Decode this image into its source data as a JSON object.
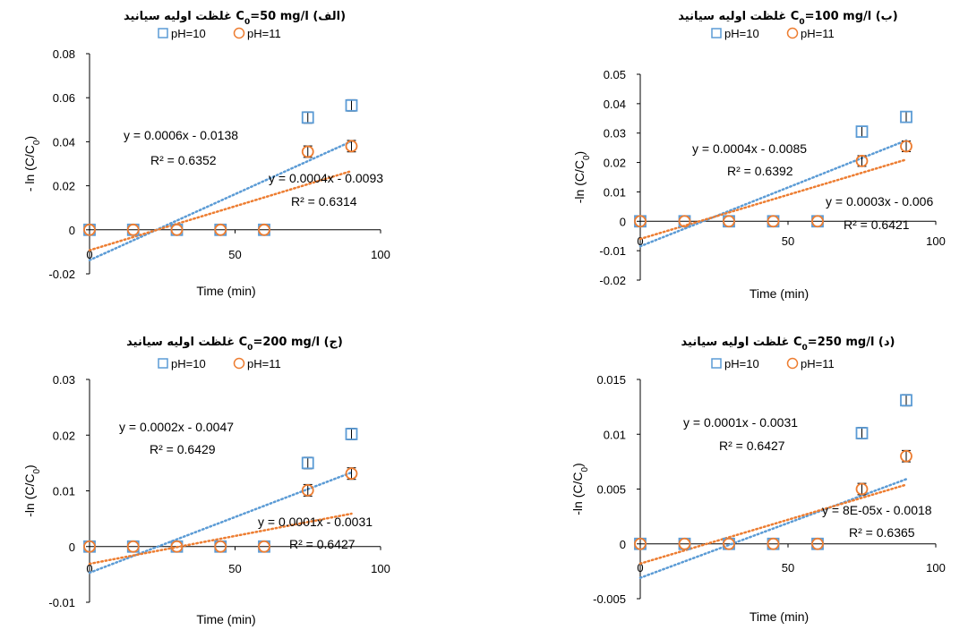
{
  "colors": {
    "blue": "#5B9BD5",
    "orange": "#ED7D31",
    "axis": "#000000"
  },
  "chart_data": [
    {
      "type": "scatter",
      "title": "غلظت اولیه سیانید C0=50 mg/l (الف)",
      "xlabel": "Time (min)",
      "ylabel": "- ln (C/C0)",
      "xlim": [
        0,
        100
      ],
      "ylim": [
        -0.02,
        0.08
      ],
      "xticks": [
        "0",
        "50",
        "100"
      ],
      "yticks": [
        "-0.02",
        "0",
        "0.02",
        "0.04",
        "0.06",
        "0.08"
      ],
      "legend": "top",
      "x": [
        0,
        15,
        30,
        45,
        60,
        75,
        90
      ],
      "series": [
        {
          "name": "pH=10",
          "marker": "square",
          "values": [
            0,
            0,
            0,
            0,
            0,
            0.051,
            0.0565
          ],
          "trendline": {
            "equation": "y = 0.0006x - 0.0138",
            "r2": "R² = 0.6352",
            "slope": 0.0006,
            "intercept": -0.0138
          }
        },
        {
          "name": "pH=11",
          "marker": "circle",
          "values": [
            0,
            0,
            0,
            0,
            0,
            0.0355,
            0.038
          ],
          "trendline": {
            "equation": "y = 0.0004x - 0.0093",
            "r2": "R² = 0.6314",
            "slope": 0.0004,
            "intercept": -0.0093
          }
        }
      ]
    },
    {
      "type": "scatter",
      "title": "غلظت اولیه سیانید C0=100 mg/l (ب)",
      "xlabel": "Time (min)",
      "ylabel": "-ln (C/C0)",
      "xlim": [
        0,
        100
      ],
      "ylim": [
        -0.02,
        0.05
      ],
      "xticks": [
        "0",
        "50",
        "100"
      ],
      "yticks": [
        "-0.02",
        "-0.01",
        "0",
        "0.01",
        "0.02",
        "0.03",
        "0.04",
        "0.05"
      ],
      "legend": "top",
      "x": [
        0,
        15,
        30,
        45,
        60,
        75,
        90
      ],
      "series": [
        {
          "name": "pH=10",
          "marker": "square",
          "values": [
            0,
            0,
            0,
            0,
            0,
            0.0305,
            0.0355
          ],
          "trendline": {
            "equation": "y = 0.0004x - 0.0085",
            "r2": "R² = 0.6392",
            "slope": 0.0004,
            "intercept": -0.0085
          }
        },
        {
          "name": "pH=11",
          "marker": "circle",
          "values": [
            0,
            0,
            0,
            0,
            0,
            0.0205,
            0.0255
          ],
          "trendline": {
            "equation": "y = 0.0003x - 0.006",
            "r2": "R² = 0.6421",
            "slope": 0.0003,
            "intercept": -0.006
          }
        }
      ]
    },
    {
      "type": "scatter",
      "title": "غلظت اولیه سیانید C0=200 mg/l (ج)",
      "xlabel": "Time (min)",
      "ylabel": "-ln (C/C0)",
      "xlim": [
        0,
        100
      ],
      "ylim": [
        -0.01,
        0.03
      ],
      "xticks": [
        "0",
        "50",
        "100"
      ],
      "yticks": [
        "-0.01",
        "0",
        "0.01",
        "0.02",
        "0.03"
      ],
      "legend": "top",
      "x": [
        0,
        15,
        30,
        45,
        60,
        75,
        90
      ],
      "series": [
        {
          "name": "pH=10",
          "marker": "square",
          "values": [
            0,
            0,
            0,
            0,
            0,
            0.015,
            0.0202
          ],
          "trendline": {
            "equation": "y = 0.0002x - 0.0047",
            "r2": "R² = 0.6429",
            "slope": 0.0002,
            "intercept": -0.0047
          }
        },
        {
          "name": "pH=11",
          "marker": "circle",
          "values": [
            0,
            0,
            0,
            0,
            0,
            0.0101,
            0.0131
          ],
          "trendline": {
            "equation": "y = 0.0001x - 0.0031",
            "r2": "R² = 0.6427",
            "slope": 0.0001,
            "intercept": -0.0031
          }
        }
      ]
    },
    {
      "type": "scatter",
      "title": "غلظت اولیه سیانید C0=250 mg/l (د)",
      "xlabel": "Time (min)",
      "ylabel": "-ln (C/C0)",
      "xlim": [
        0,
        100
      ],
      "ylim": [
        -0.005,
        0.015
      ],
      "xticks": [
        "0",
        "50",
        "100"
      ],
      "yticks": [
        "-0.005",
        "0",
        "0.005",
        "0.01",
        "0.015"
      ],
      "legend": "top",
      "x": [
        0,
        15,
        30,
        45,
        60,
        75,
        90
      ],
      "series": [
        {
          "name": "pH=10",
          "marker": "square",
          "values": [
            0,
            0,
            0,
            0,
            0,
            0.0101,
            0.0131
          ],
          "trendline": {
            "equation": "y = 0.0001x - 0.0031",
            "r2": "R² = 0.6427",
            "slope": 0.0001,
            "intercept": -0.0031
          }
        },
        {
          "name": "pH=11",
          "marker": "circle",
          "values": [
            0,
            0,
            0,
            0,
            0,
            0.005,
            0.008
          ],
          "trendline": {
            "equation": "y = 8E-05x - 0.0018",
            "r2": "R² = 0.6365",
            "slope": 8e-05,
            "intercept": -0.0018
          }
        }
      ]
    }
  ]
}
